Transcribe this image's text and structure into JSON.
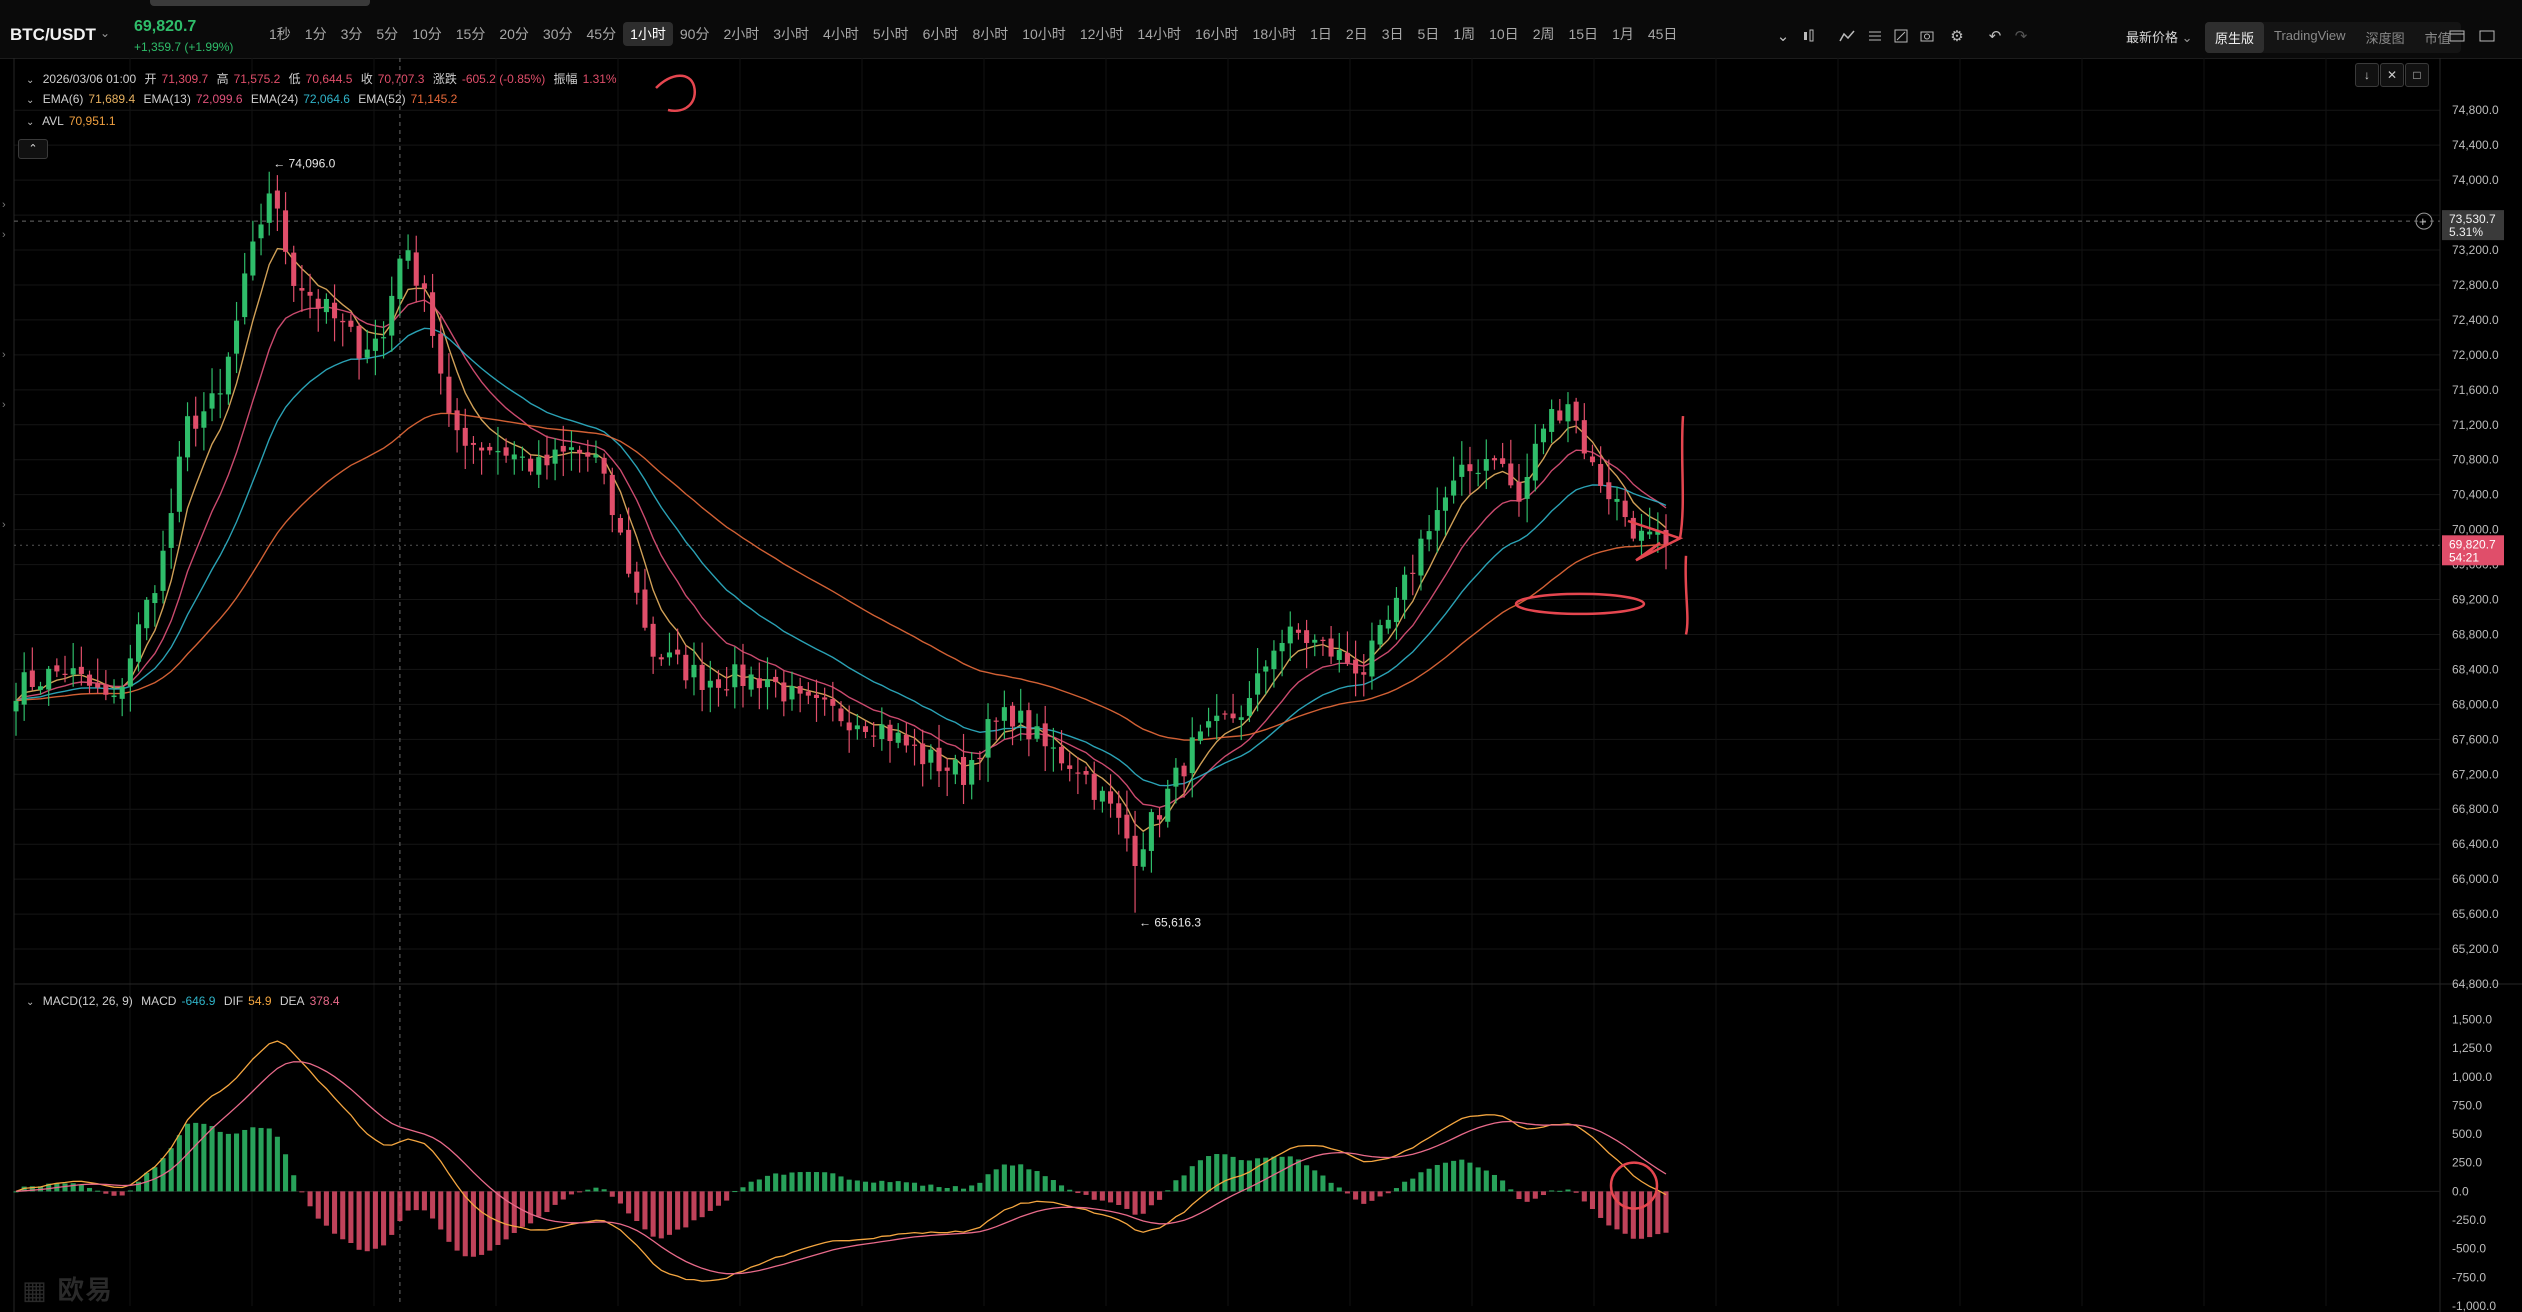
{
  "toolbar": {
    "symbol": "BTC/USDT",
    "last_price": "69,820.7",
    "price_change": "+1,359.7 (+1.99%)",
    "intervals": [
      "1秒",
      "1分",
      "3分",
      "5分",
      "10分",
      "15分",
      "20分",
      "30分",
      "45分",
      "1小时",
      "90分",
      "2小时",
      "3小时",
      "4小时",
      "5小时",
      "6小时",
      "8小时",
      "10小时",
      "12小时",
      "14小时",
      "16小时",
      "18小时",
      "1日",
      "2日",
      "3日",
      "5日",
      "1周",
      "10日",
      "2周",
      "15日",
      "1月",
      "45日"
    ],
    "active_interval": "1小时",
    "latest_price_label": "最新价格",
    "view_tabs": [
      "原生版",
      "TradingView",
      "深度图",
      "市值"
    ],
    "active_view": "原生版",
    "icons": [
      "chevron-down-icon",
      "candle-type-icon",
      "indicators-icon",
      "layout-icon",
      "drawing-icon",
      "screenshot-icon",
      "settings-icon",
      "undo-icon",
      "redo-icon",
      "window-icon",
      "fullscreen-icon"
    ]
  },
  "legend": {
    "date": "2026/03/06 01:00",
    "open_label": "开",
    "open": "71,309.7",
    "high_label": "高",
    "high": "71,575.2",
    "low_label": "低",
    "low": "70,644.5",
    "close_label": "收",
    "close": "70,707.3",
    "change_label": "涨跌",
    "change": "-605.2 (-0.85%)",
    "amplitude_label": "振幅",
    "amplitude": "1.31%",
    "ema": [
      {
        "name": "EMA(6)",
        "value": "71,689.4"
      },
      {
        "name": "EMA(13)",
        "value": "72,099.6"
      },
      {
        "name": "EMA(24)",
        "value": "72,064.6"
      },
      {
        "name": "EMA(52)",
        "value": "71,145.2"
      }
    ],
    "avl": {
      "name": "AVL",
      "value": "70,951.1"
    },
    "macd": {
      "name": "MACD(12, 26, 9)",
      "macd_label": "MACD",
      "macd": "-646.9",
      "dif_label": "DIF",
      "dif": "54.9",
      "dea_label": "DEA",
      "dea": "378.4"
    }
  },
  "markers": {
    "high_label": "74,096.0",
    "low_label": "65,616.3",
    "crosshair_price": "73,530.7",
    "crosshair_pct": "5.31%",
    "current_price": "69,820.7",
    "countdown": "54:21"
  },
  "watermark": "欧易",
  "chart_data": [
    {
      "type": "candlestick",
      "interval": "1小时",
      "ylim": [
        64800,
        75100
      ],
      "y_ticks": [
        "74,800.0",
        "74,400.0",
        "74,000.0",
        "73,600.0",
        "73,200.0",
        "72,800.0",
        "72,400.0",
        "72,000.0",
        "71,600.0",
        "71,200.0",
        "70,800.0",
        "70,400.0",
        "70,000.0",
        "69,600.0",
        "69,200.0",
        "68,800.0",
        "68,400.0",
        "68,000.0",
        "67,600.0",
        "67,200.0",
        "66,800.0",
        "66,400.0",
        "66,000.0",
        "65,600.0",
        "65,200.0",
        "64,800.0"
      ],
      "anchors": [
        [
          0,
          68200
        ],
        [
          6,
          68400
        ],
        [
          12,
          68000
        ],
        [
          18,
          69700
        ],
        [
          21,
          71200
        ],
        [
          25,
          71500
        ],
        [
          28,
          72800
        ],
        [
          31,
          73900
        ],
        [
          34,
          72900
        ],
        [
          38,
          72500
        ],
        [
          42,
          72100
        ],
        [
          45,
          72200
        ],
        [
          47,
          73200
        ],
        [
          50,
          72800
        ],
        [
          53,
          71200
        ],
        [
          56,
          71000
        ],
        [
          60,
          70900
        ],
        [
          64,
          70700
        ],
        [
          68,
          70900
        ],
        [
          71,
          70800
        ],
        [
          74,
          69900
        ],
        [
          78,
          68600
        ],
        [
          84,
          68300
        ],
        [
          92,
          68300
        ],
        [
          96,
          68000
        ],
        [
          100,
          67900
        ],
        [
          105,
          67800
        ],
        [
          111,
          67400
        ],
        [
          116,
          67200
        ],
        [
          119,
          67700
        ],
        [
          122,
          67900
        ],
        [
          126,
          67500
        ],
        [
          130,
          67300
        ],
        [
          134,
          66800
        ],
        [
          137,
          66300
        ],
        [
          140,
          66800
        ],
        [
          144,
          67500
        ],
        [
          148,
          67800
        ],
        [
          151,
          68000
        ],
        [
          154,
          68700
        ],
        [
          157,
          68800
        ],
        [
          161,
          68600
        ],
        [
          165,
          68400
        ],
        [
          169,
          69100
        ],
        [
          173,
          70100
        ],
        [
          177,
          70600
        ],
        [
          181,
          70900
        ],
        [
          184,
          70300
        ],
        [
          187,
          71200
        ],
        [
          190,
          71500
        ],
        [
          193,
          70700
        ],
        [
          196,
          70300
        ],
        [
          199,
          69900
        ],
        [
          202,
          69820
        ]
      ],
      "high": 74096.0,
      "low": 65616.3,
      "current": 69820.7,
      "series": [
        {
          "name": "EMA(6)",
          "color": "#e7b160"
        },
        {
          "name": "EMA(13)",
          "color": "#e0527a"
        },
        {
          "name": "EMA(24)",
          "color": "#2fb3c8"
        },
        {
          "name": "EMA(52)",
          "color": "#e86a3a"
        }
      ]
    },
    {
      "type": "bar",
      "name": "MACD(12, 26, 9)",
      "ylim": [
        -1000,
        1600
      ],
      "y_ticks": [
        "1,500.0",
        "1,250.0",
        "1,000.0",
        "750.0",
        "500.0",
        "250.0",
        "0.0",
        "-250.0",
        "-500.0",
        "-750.0",
        "-1,000.0"
      ],
      "series": [
        {
          "name": "DIF",
          "color": "#f4a640"
        },
        {
          "name": "DEA",
          "color": "#e86a8a"
        }
      ]
    }
  ]
}
